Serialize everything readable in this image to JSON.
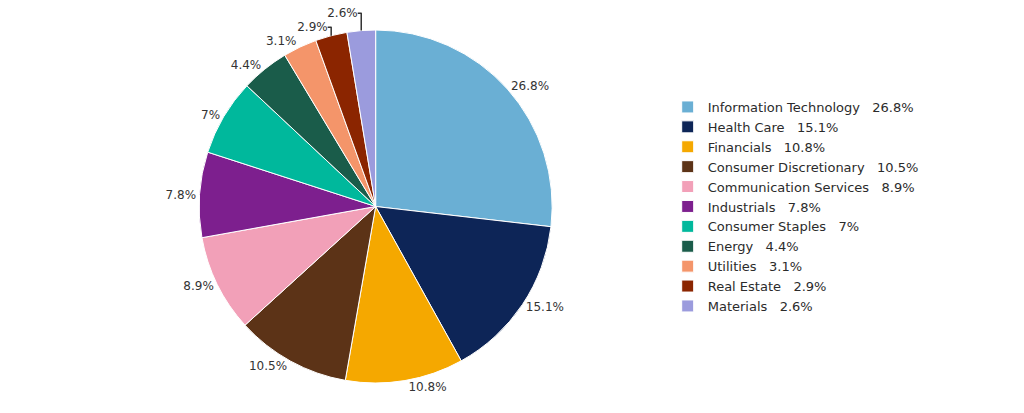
{
  "chart_data": {
    "type": "pie",
    "categories": [
      "Information Technology   26.8%",
      "Health Care   15.1%",
      "Financials   10.8%",
      "Consumer Discretionary   10.5%",
      "Communication Services   8.9%",
      "Industrials   7.8%",
      "Consumer Staples   7%",
      "Energy   4.4%",
      "Utilities   3.1%",
      "Real Estate   2.9%",
      "Materials   2.6%"
    ],
    "values": [
      26.8,
      15.1,
      10.8,
      10.5,
      8.9,
      7.8,
      7.0,
      4.4,
      3.1,
      2.9,
      2.6
    ],
    "value_labels": [
      "26.8%",
      "15.1%",
      "10.8%",
      "10.5%",
      "8.9%",
      "7.8%",
      "7%",
      "4.4%",
      "3.1%",
      "2.9%",
      "2.6%"
    ],
    "colors": [
      "#6aafd4",
      "#0d2557",
      "#f5a800",
      "#5c3317",
      "#f2a0b8",
      "#7d1f8e",
      "#00b89c",
      "#1a5c4a",
      "#f4956a",
      "#8b2500",
      "#9b9bdd"
    ],
    "data_labels": true,
    "legend": "right"
  }
}
